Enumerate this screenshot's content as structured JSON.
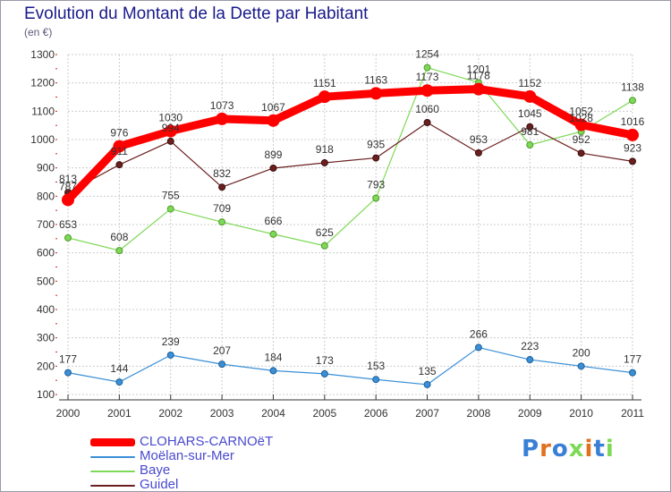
{
  "chart_data": {
    "type": "line",
    "title": "Evolution du Montant de la Dette par Habitant",
    "ylabel": "(en €)",
    "xlabel": "",
    "ylim": [
      100,
      1300
    ],
    "yticks": [
      100,
      200,
      300,
      400,
      500,
      600,
      700,
      800,
      900,
      1000,
      1100,
      1200,
      1300
    ],
    "categories": [
      "2000",
      "2001",
      "2002",
      "2003",
      "2004",
      "2005",
      "2006",
      "2007",
      "2008",
      "2009",
      "2010",
      "2011"
    ],
    "grid": true,
    "legend_position": "bottom-left",
    "series": [
      {
        "name": "CLOHARS-CARNOëT",
        "color": "#ff0000",
        "values": [
          787,
          976,
          1030,
          1073,
          1067,
          1151,
          1163,
          1173,
          1178,
          1152,
          1052,
          1016
        ],
        "labels": [
          "787",
          "976",
          "1030",
          "1073",
          "1067",
          "1151",
          "1163",
          "1173",
          "1178",
          "1152",
          "1052",
          "1016"
        ]
      },
      {
        "name": "Moëlan-sur-Mer",
        "color": "#3a8fd6",
        "values": [
          177,
          144,
          239,
          207,
          184,
          173,
          153,
          135,
          266,
          223,
          200,
          177
        ],
        "labels": [
          "177",
          "144",
          "239",
          "207",
          "184",
          "173",
          "153",
          "135",
          "266",
          "223",
          "200",
          "177"
        ]
      },
      {
        "name": "Baye",
        "color": "#7ed957",
        "values": [
          653,
          608,
          755,
          709,
          666,
          625,
          793,
          1254,
          1201,
          981,
          1028,
          1138
        ],
        "labels": [
          "653",
          "608",
          "755",
          "709",
          "666",
          "625",
          "793",
          "1254",
          "1201",
          "981",
          "1028",
          "1138"
        ]
      },
      {
        "name": "Guidel",
        "color": "#6b1f1f",
        "values": [
          813,
          911,
          994,
          832,
          899,
          918,
          935,
          1060,
          953,
          1045,
          952,
          923
        ],
        "labels": [
          "813",
          "911",
          "994",
          "832",
          "899",
          "918",
          "935",
          "1060",
          "953",
          "1045",
          "952",
          "923"
        ]
      }
    ]
  },
  "logo": {
    "text": "Proxiti"
  }
}
